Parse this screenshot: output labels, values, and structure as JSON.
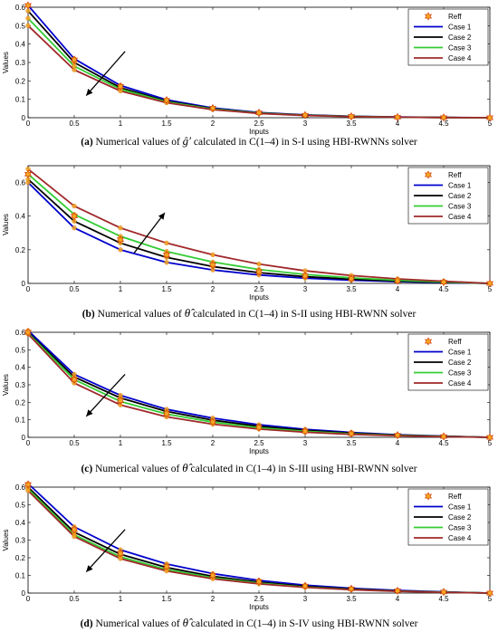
{
  "chart_data": [
    {
      "type": "line",
      "caption_tag": "(a)",
      "caption_pre": "Numerical values of",
      "caption_symbol": "ĝ′",
      "caption_post": "calculated in C(1–4) in S-I using HBI-RWNNs solver",
      "xlabel": "Inputs",
      "ylabel": "Values",
      "xlim": [
        0,
        5
      ],
      "ylim": [
        0,
        0.6
      ],
      "xticks": [
        "0",
        "0.5",
        "1",
        "1.5",
        "2",
        "2.5",
        "3",
        "3.5",
        "4",
        "4.5",
        "5"
      ],
      "yticks": [
        "0",
        "0.1",
        "0.2",
        "0.3",
        "0.4",
        "0.5",
        "0.6"
      ],
      "legend_position": "top-right",
      "arrow": "downward",
      "x": [
        0,
        0.5,
        1,
        1.5,
        2,
        2.5,
        3,
        3.5,
        4,
        4.5,
        5
      ],
      "series": [
        {
          "name": "Reff",
          "marker": "star",
          "color": "#f5a623",
          "values": [
            0.61,
            0.315,
            0.17,
            0.095,
            0.052,
            0.027,
            0.014,
            0.007,
            0.003,
            0.001,
            0
          ]
        },
        {
          "name": "Case 1",
          "color": "#0000cc",
          "values": [
            0.61,
            0.32,
            0.175,
            0.097,
            0.053,
            0.028,
            0.015,
            0.008,
            0.004,
            0.002,
            0
          ]
        },
        {
          "name": "Case 2",
          "color": "#000000",
          "values": [
            0.58,
            0.3,
            0.163,
            0.09,
            0.049,
            0.026,
            0.014,
            0.007,
            0.003,
            0.001,
            0
          ]
        },
        {
          "name": "Case 3",
          "color": "#33cc33",
          "values": [
            0.54,
            0.28,
            0.155,
            0.086,
            0.047,
            0.025,
            0.013,
            0.007,
            0.003,
            0.001,
            0
          ]
        },
        {
          "name": "Case 4",
          "color": "#a0282a",
          "values": [
            0.5,
            0.26,
            0.145,
            0.081,
            0.044,
            0.023,
            0.012,
            0.006,
            0.003,
            0.001,
            0
          ]
        }
      ]
    },
    {
      "type": "line",
      "caption_tag": "(b)",
      "caption_pre": "Numerical values of",
      "caption_symbol": "θ̂",
      "caption_post": "calculated in C(1–4) in S-II using HBI-RWNN solver",
      "xlabel": "Inputs",
      "ylabel": "Values",
      "xlim": [
        0,
        5
      ],
      "ylim": [
        0,
        0.7
      ],
      "xticks": [
        "0",
        "0.5",
        "1",
        "1.5",
        "2",
        "2.5",
        "3",
        "3.5",
        "4",
        "4.5",
        "5"
      ],
      "yticks": [
        "0",
        "0.2",
        "0.4",
        "0.6"
      ],
      "legend_position": "top-right",
      "arrow": "upward",
      "x": [
        0,
        0.5,
        1,
        1.5,
        2,
        2.5,
        3,
        3.5,
        4,
        4.5,
        5
      ],
      "series": [
        {
          "name": "Reff",
          "marker": "star",
          "color": "#f5a623",
          "values": [
            0.65,
            0.4,
            0.26,
            0.17,
            0.11,
            0.07,
            0.045,
            0.028,
            0.016,
            0.008,
            0
          ]
        },
        {
          "name": "Case 1",
          "color": "#0000cc",
          "values": [
            0.6,
            0.33,
            0.2,
            0.125,
            0.08,
            0.05,
            0.031,
            0.019,
            0.011,
            0.005,
            0
          ]
        },
        {
          "name": "Case 2",
          "color": "#000000",
          "values": [
            0.62,
            0.37,
            0.24,
            0.155,
            0.1,
            0.064,
            0.04,
            0.025,
            0.014,
            0.007,
            0
          ]
        },
        {
          "name": "Case 3",
          "color": "#33cc33",
          "values": [
            0.65,
            0.41,
            0.28,
            0.19,
            0.127,
            0.083,
            0.053,
            0.033,
            0.019,
            0.009,
            0
          ]
        },
        {
          "name": "Case 4",
          "color": "#a0282a",
          "values": [
            0.68,
            0.46,
            0.33,
            0.24,
            0.17,
            0.115,
            0.075,
            0.047,
            0.027,
            0.013,
            0
          ]
        }
      ]
    },
    {
      "type": "line",
      "caption_tag": "(c)",
      "caption_pre": "Numerical values of",
      "caption_symbol": "θ̂",
      "caption_post": "calculated in C(1–4) in S-III using HBI-RWNN solver",
      "xlabel": "Inputs",
      "ylabel": "Values",
      "xlim": [
        0,
        5
      ],
      "ylim": [
        0,
        0.6
      ],
      "xticks": [
        "0",
        "0.5",
        "1",
        "1.5",
        "2",
        "2.5",
        "3",
        "3.5",
        "4",
        "4.5",
        "5"
      ],
      "yticks": [
        "0",
        "0.1",
        "0.2",
        "0.3",
        "0.4",
        "0.5",
        "0.6"
      ],
      "legend_position": "top-right",
      "arrow": "downward",
      "x": [
        0,
        0.5,
        1,
        1.5,
        2,
        2.5,
        3,
        3.5,
        4,
        4.5,
        5
      ],
      "series": [
        {
          "name": "Reff",
          "marker": "star",
          "color": "#f5a623",
          "values": [
            0.6,
            0.33,
            0.21,
            0.135,
            0.088,
            0.057,
            0.035,
            0.021,
            0.012,
            0.005,
            0
          ]
        },
        {
          "name": "Case 1",
          "color": "#0000cc",
          "values": [
            0.61,
            0.36,
            0.24,
            0.16,
            0.11,
            0.072,
            0.046,
            0.028,
            0.015,
            0.007,
            0
          ]
        },
        {
          "name": "Case 2",
          "color": "#000000",
          "values": [
            0.6,
            0.345,
            0.225,
            0.148,
            0.098,
            0.063,
            0.04,
            0.024,
            0.013,
            0.006,
            0
          ]
        },
        {
          "name": "Case 3",
          "color": "#33cc33",
          "values": [
            0.595,
            0.33,
            0.205,
            0.133,
            0.087,
            0.055,
            0.034,
            0.02,
            0.011,
            0.005,
            0
          ]
        },
        {
          "name": "Case 4",
          "color": "#a0282a",
          "values": [
            0.59,
            0.31,
            0.185,
            0.117,
            0.075,
            0.047,
            0.029,
            0.017,
            0.009,
            0.004,
            0
          ]
        }
      ]
    },
    {
      "type": "line",
      "caption_tag": "(d)",
      "caption_pre": "Numerical values of",
      "caption_symbol": "θ̂",
      "caption_post": "calculated in C(1–4) in S-IV using HBI-RWNN solver",
      "xlabel": "Inputs",
      "ylabel": "Values",
      "xlim": [
        0,
        5
      ],
      "ylim": [
        0,
        0.6
      ],
      "xticks": [
        "0",
        "0.5",
        "1",
        "1.5",
        "2",
        "2.5",
        "3",
        "3.5",
        "4",
        "4.5",
        "5"
      ],
      "yticks": [
        "0",
        "0.1",
        "0.2",
        "0.3",
        "0.4",
        "0.5",
        "0.6"
      ],
      "legend_position": "top-right",
      "arrow": "downward",
      "x": [
        0,
        0.5,
        1,
        1.5,
        2,
        2.5,
        3,
        3.5,
        4,
        4.5,
        5
      ],
      "series": [
        {
          "name": "Reff",
          "marker": "star",
          "color": "#f5a623",
          "values": [
            0.615,
            0.36,
            0.225,
            0.15,
            0.1,
            0.065,
            0.04,
            0.024,
            0.013,
            0.006,
            0
          ]
        },
        {
          "name": "Case 1",
          "color": "#0000cc",
          "values": [
            0.62,
            0.375,
            0.245,
            0.165,
            0.11,
            0.072,
            0.045,
            0.027,
            0.015,
            0.007,
            0
          ]
        },
        {
          "name": "Case 2",
          "color": "#000000",
          "values": [
            0.6,
            0.345,
            0.22,
            0.145,
            0.095,
            0.062,
            0.038,
            0.023,
            0.012,
            0.005,
            0
          ]
        },
        {
          "name": "Case 3",
          "color": "#33cc33",
          "values": [
            0.59,
            0.33,
            0.205,
            0.133,
            0.087,
            0.056,
            0.034,
            0.02,
            0.011,
            0.005,
            0
          ]
        },
        {
          "name": "Case 4",
          "color": "#a0282a",
          "values": [
            0.58,
            0.32,
            0.195,
            0.125,
            0.081,
            0.052,
            0.032,
            0.019,
            0.01,
            0.004,
            0
          ]
        }
      ]
    }
  ]
}
